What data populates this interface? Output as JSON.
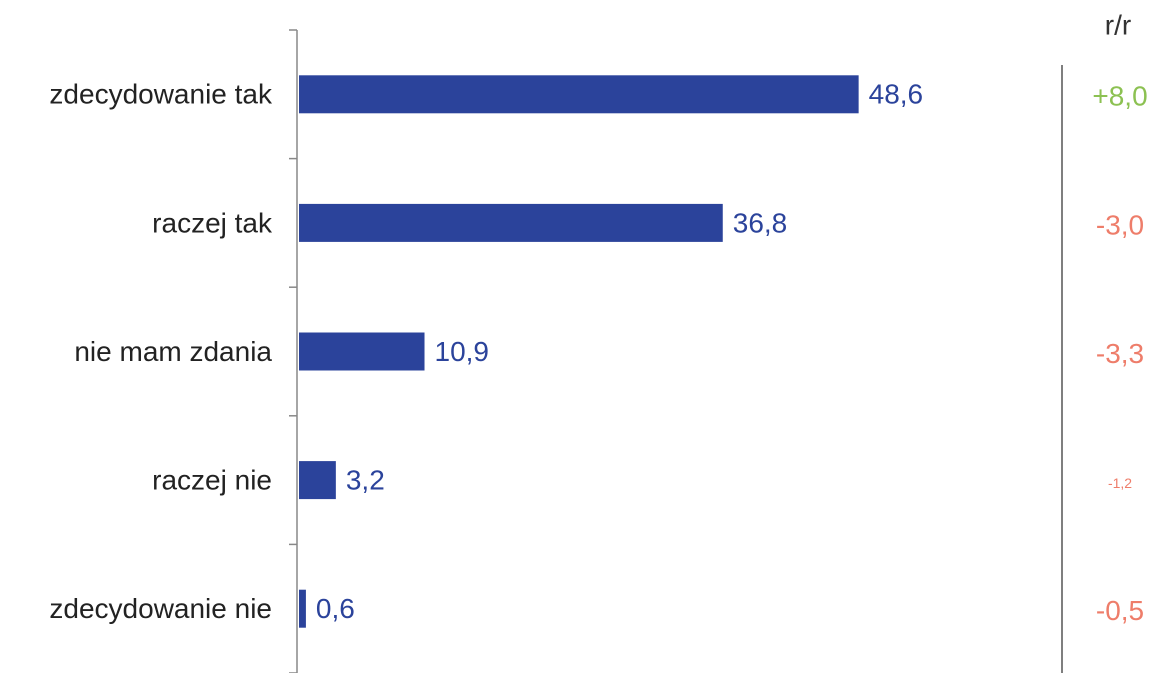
{
  "chart_data": {
    "type": "bar",
    "orientation": "horizontal",
    "categories": [
      "zdecydowanie tak",
      "raczej tak",
      "nie mam zdania",
      "raczej nie",
      "zdecydowanie nie"
    ],
    "values": [
      48.6,
      36.8,
      10.9,
      3.2,
      0.6
    ],
    "value_labels": [
      "48,6",
      "36,8",
      "10,9",
      "3,2",
      "0,6"
    ],
    "color": "#2b439b",
    "xlim": [
      0,
      66
    ],
    "change_header": "r/r",
    "change_values": [
      8.0,
      -3.0,
      -3.3,
      -1.2,
      -0.5
    ],
    "change_labels": [
      "+8,0",
      "-3,0",
      "-3,3",
      "-1,2",
      "-0,5"
    ],
    "change_colors": [
      "#8cc152",
      "#ee7d6a",
      "#ee7d6a",
      "#ee7d6a",
      "#ee7d6a"
    ]
  }
}
